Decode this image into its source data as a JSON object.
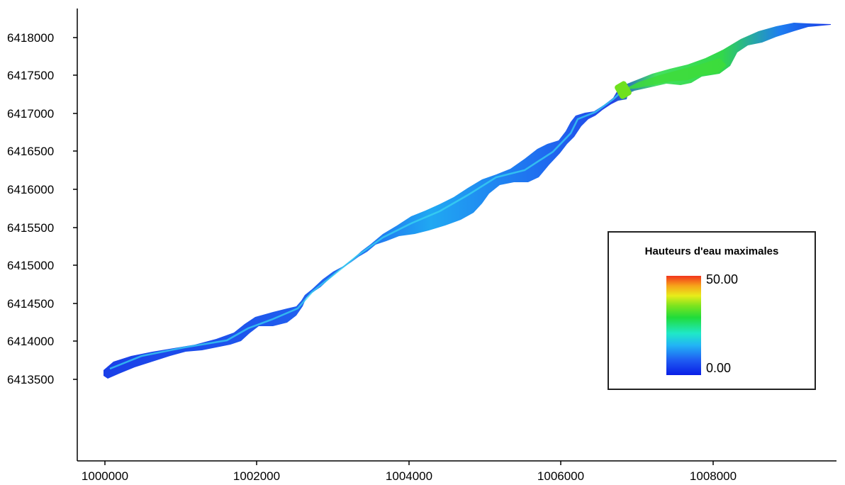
{
  "map": {
    "y_axis_labels": [
      "6418000",
      "6417500",
      "6417000",
      "6416500",
      "6416000",
      "6415500",
      "6415000",
      "6414500",
      "6414000",
      "6413500"
    ],
    "x_axis_labels": [
      "1000000",
      "1002000",
      "1004000",
      "1006000",
      "1008000"
    ],
    "colors": {
      "low": "#0a1ee6",
      "mid_low": "#22b4f5",
      "mid": "#20dc3a",
      "high": "#f2351c"
    }
  },
  "legend": {
    "title": "Hauteurs d'eau maximales",
    "max": "50.00",
    "min": "0.00"
  }
}
